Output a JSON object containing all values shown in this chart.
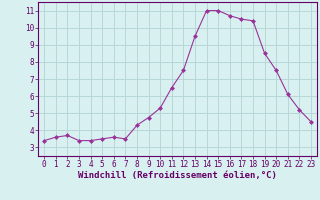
{
  "x": [
    0,
    1,
    2,
    3,
    4,
    5,
    6,
    7,
    8,
    9,
    10,
    11,
    12,
    13,
    14,
    15,
    16,
    17,
    18,
    19,
    20,
    21,
    22,
    23
  ],
  "y": [
    3.4,
    3.6,
    3.7,
    3.4,
    3.4,
    3.5,
    3.6,
    3.5,
    4.3,
    4.75,
    5.3,
    6.5,
    7.5,
    9.5,
    11.0,
    11.0,
    10.7,
    10.5,
    10.4,
    8.5,
    7.5,
    6.1,
    5.2,
    4.5
  ],
  "line_color": "#993399",
  "marker": "D",
  "marker_size": 2,
  "bg_color": "#d8f0f0",
  "grid_color": "#b8d8d8",
  "xlabel": "Windchill (Refroidissement éolien,°C)",
  "xlim": [
    -0.5,
    23.5
  ],
  "ylim": [
    2.5,
    11.5
  ],
  "xticks": [
    0,
    1,
    2,
    3,
    4,
    5,
    6,
    7,
    8,
    9,
    10,
    11,
    12,
    13,
    14,
    15,
    16,
    17,
    18,
    19,
    20,
    21,
    22,
    23
  ],
  "yticks": [
    3,
    4,
    5,
    6,
    7,
    8,
    9,
    10,
    11
  ],
  "tick_fontsize": 5.5,
  "xlabel_fontsize": 6.5,
  "line_color_dark": "#660066",
  "spine_color": "#660066"
}
